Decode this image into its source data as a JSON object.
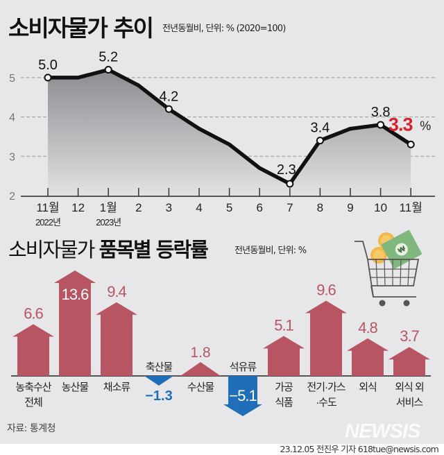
{
  "header": {
    "title": "소비자물가 추이",
    "subtitle": "전년동월비, 단위: % (2020=100)"
  },
  "section2": {
    "title_regular": "소비자물가 ",
    "title_bold": "품목별 등락률",
    "subtitle": "전년동월비, 단위: %"
  },
  "footer": {
    "source": "자료: 통계청",
    "logo": "NEWSIS",
    "credit": "23.12.05 전진우 기자 618tue@newsis.com"
  },
  "colors": {
    "background": "#e7e7e9",
    "positive": "#b85562",
    "negative": "#1f6fb8",
    "highlight": "#d7212b",
    "line": "#111111"
  },
  "chart_data": [
    {
      "type": "line",
      "title": "소비자물가 추이",
      "subtitle": "전년동월비, 단위: % (2020=100)",
      "xlabel": "",
      "ylabel": "%",
      "categories": [
        "11월 2022년",
        "12",
        "1월 2023년",
        "2",
        "3",
        "4",
        "5",
        "6",
        "7",
        "8",
        "9",
        "10",
        "11월"
      ],
      "x_tick_labels": [
        "11월",
        "12",
        "1월",
        "2",
        "3",
        "4",
        "5",
        "6",
        "7",
        "8",
        "9",
        "10",
        "11월"
      ],
      "x_sub_labels": [
        "2022년",
        "",
        "2023년",
        "",
        "",
        "",
        "",
        "",
        "",
        "",
        "",
        "",
        ""
      ],
      "values": [
        5.0,
        5.0,
        5.2,
        4.8,
        4.2,
        3.7,
        3.3,
        2.7,
        2.3,
        3.4,
        3.7,
        3.8,
        3.3
      ],
      "labeled_points": [
        {
          "index": 0,
          "label": "5.0"
        },
        {
          "index": 2,
          "label": "5.2"
        },
        {
          "index": 4,
          "label": "4.2"
        },
        {
          "index": 8,
          "label": "2.3"
        },
        {
          "index": 9,
          "label": "3.4"
        },
        {
          "index": 11,
          "label": "3.8"
        },
        {
          "index": 12,
          "label": "3.3",
          "suffix": "%",
          "highlight": true
        }
      ],
      "y_ticks": [
        "2",
        "3",
        "4",
        "5"
      ],
      "ylim": [
        2,
        5.5
      ],
      "grid": true,
      "area_fill": true
    },
    {
      "type": "bar",
      "title": "소비자물가 품목별 등락률",
      "subtitle": "전년동월비, 단위: %",
      "categories": [
        "농축수산 전체",
        "농산물",
        "채소류",
        "축산물",
        "수산물",
        "석유류",
        "가공 식품",
        "전기·가스·수도",
        "외식",
        "외식 외 서비스"
      ],
      "labels_line1": [
        "농축수산",
        "농산물",
        "채소류",
        "축산물",
        "수산물",
        "석유류",
        "가공",
        "전기·가스",
        "외식",
        "외식 외"
      ],
      "labels_line2": [
        "전체",
        "",
        "",
        "",
        "",
        "",
        "식품",
        "·수도",
        "",
        "서비스"
      ],
      "values": [
        6.6,
        13.6,
        9.4,
        -1.3,
        1.8,
        -5.1,
        5.1,
        9.6,
        4.8,
        3.7
      ],
      "value_labels": [
        "6.6",
        "13.6",
        "9.4",
        "−1.3",
        "1.8",
        "−5.1",
        "5.1",
        "9.6",
        "4.8",
        "3.7"
      ]
    }
  ]
}
